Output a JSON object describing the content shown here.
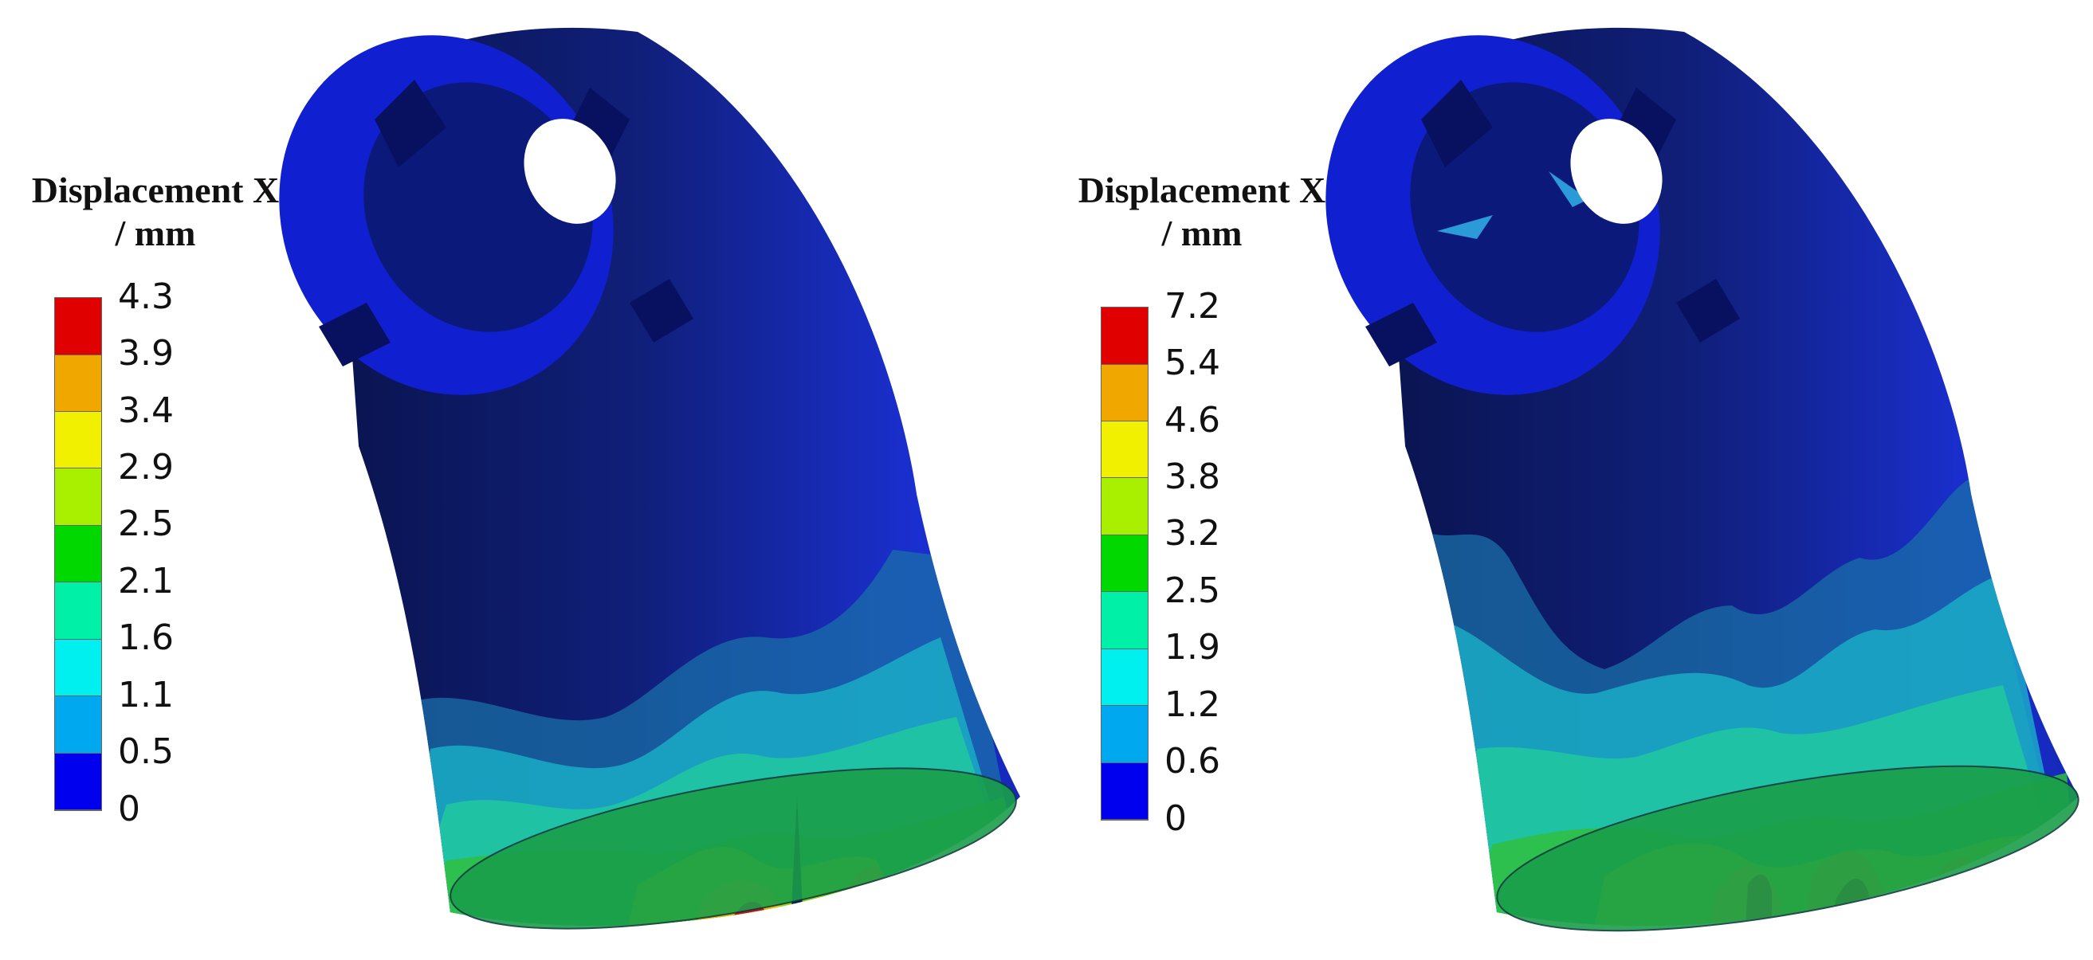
{
  "colors": {
    "background": "#ffffff",
    "hub_dark": "#0b1a6b",
    "pipe_dark": "#0e1d63",
    "blue": "#1020d8",
    "band_colors": [
      "#0000ee",
      "#00a8f0",
      "#00f0f0",
      "#00f0a8",
      "#00d800",
      "#a8f000",
      "#f0f000",
      "#f0a800",
      "#e00000"
    ]
  },
  "panels": [
    {
      "legend": {
        "title_line1": "Displacement X",
        "title_line2": "/ mm",
        "ticks": [
          "4.3",
          "3.9",
          "3.4",
          "2.9",
          "2.5",
          "2.1",
          "1.6",
          "1.1",
          "0.5",
          "0"
        ],
        "max_displacement": 4.3
      }
    },
    {
      "legend": {
        "title_line1": "Displacement X",
        "title_line2": "/ mm",
        "ticks": [
          "7.2",
          "5.4",
          "4.6",
          "3.8",
          "3.2",
          "2.5",
          "1.9",
          "1.2",
          "0.6",
          "0"
        ],
        "max_displacement": 7.2
      }
    }
  ]
}
